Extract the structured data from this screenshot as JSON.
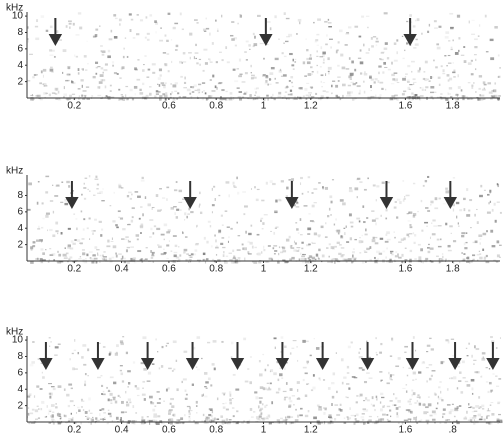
{
  "chart_data": [
    {
      "type": "spectrogram",
      "y_label": "kHz",
      "ylim": [
        0,
        10.5
      ],
      "yticks": [
        2,
        4,
        6,
        8,
        10
      ],
      "xlim": [
        0,
        2
      ],
      "xticks": [
        0.2,
        0.6,
        0.8,
        1,
        1.2,
        1.6,
        1.8
      ],
      "arrows": [
        0.12,
        1.01,
        1.62
      ]
    },
    {
      "type": "spectrogram",
      "y_label": "kHz",
      "ylim": [
        0,
        10.5
      ],
      "yticks": [
        2,
        4,
        6,
        8
      ],
      "xlim": [
        0,
        2
      ],
      "xticks": [
        0.2,
        0.4,
        0.6,
        0.8,
        1,
        1.2,
        1.6,
        1.8
      ],
      "arrows": [
        0.19,
        0.69,
        1.12,
        1.52,
        1.79
      ]
    },
    {
      "type": "spectrogram",
      "y_label": "kHz",
      "ylim": [
        0,
        10.5
      ],
      "yticks": [
        2,
        4,
        6,
        8,
        10
      ],
      "xlim": [
        0,
        2
      ],
      "xticks": [
        0.2,
        0.4,
        0.6,
        0.8,
        1,
        1.2,
        1.6,
        {
          "value": 1.8,
          "label": ".8"
        }
      ],
      "arrows": [
        0.08,
        0.3,
        0.51,
        0.7,
        0.89,
        1.08,
        1.25,
        1.44,
        1.63,
        1.81,
        1.97
      ]
    }
  ]
}
